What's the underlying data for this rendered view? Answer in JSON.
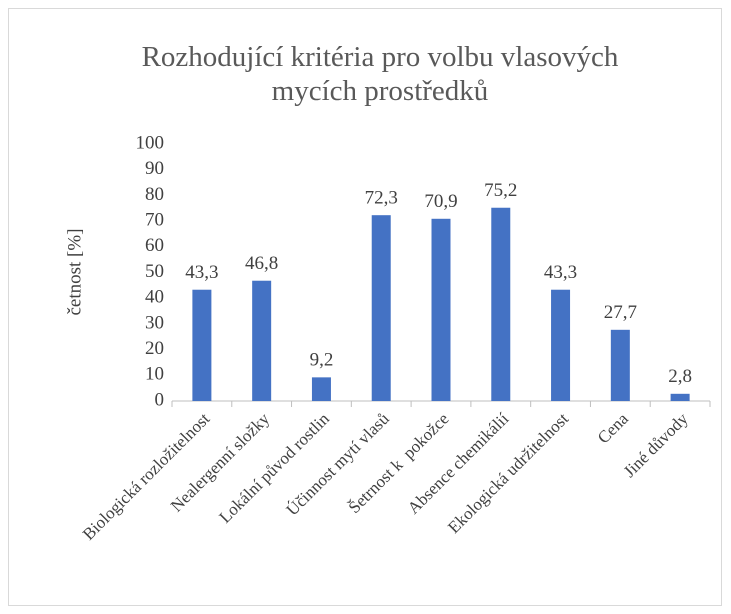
{
  "chart_data": {
    "type": "bar",
    "title": "Rozhodující kritéria pro volbu vlasových mycích prostředků",
    "y_label": "četnost [%]",
    "categories": [
      "Biologická rozložitelnost",
      "Nealergenní složky",
      "Lokální původ rostlin",
      "Účinnost mytí vlasů",
      "Šetrnost k  pokožce",
      "Absence chemikálií",
      "Ekologická udržitelnost",
      "Cena",
      "Jiné důvody"
    ],
    "values": [
      43.3,
      46.8,
      9.2,
      72.3,
      70.9,
      75.2,
      43.3,
      27.7,
      2.8
    ],
    "value_labels": [
      "43,3",
      "46,8",
      "9,2",
      "72,3",
      "70,9",
      "75,2",
      "43,3",
      "27,7",
      "2,8"
    ],
    "color": "#4472c4",
    "ylim": [
      0,
      100
    ],
    "yticks": [
      0,
      10,
      20,
      30,
      40,
      50,
      60,
      70,
      80,
      90,
      100
    ],
    "grid": false
  }
}
